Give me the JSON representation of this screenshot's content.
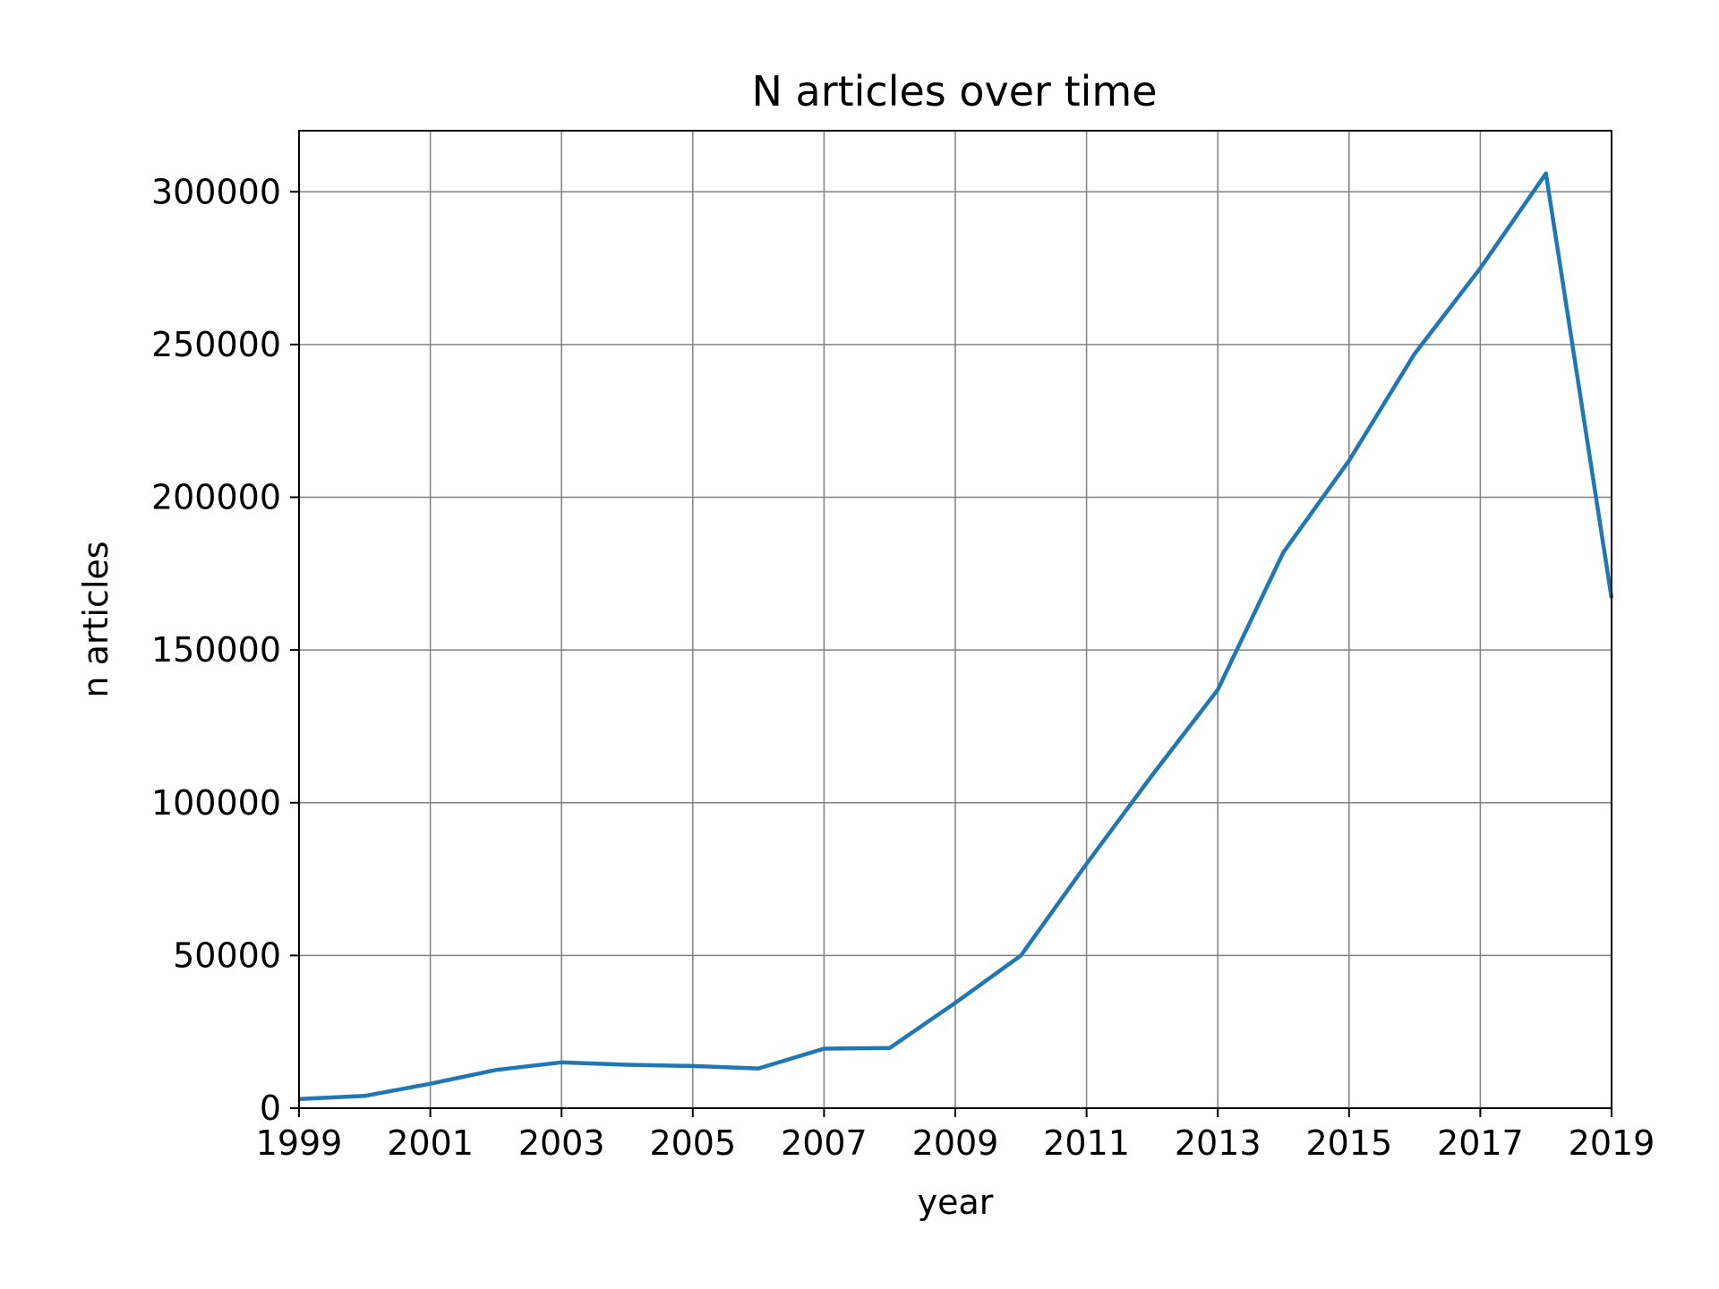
{
  "chart_data": {
    "type": "line",
    "title": "N articles over time",
    "xlabel": "year",
    "ylabel": "n articles",
    "xlim": [
      1999,
      2019
    ],
    "ylim": [
      0,
      320000
    ],
    "grid": true,
    "x_ticks": [
      "1999",
      "2001",
      "2003",
      "2005",
      "2007",
      "2009",
      "2011",
      "2013",
      "2015",
      "2017",
      "2019"
    ],
    "y_ticks": [
      "0",
      "50000",
      "100000",
      "150000",
      "200000",
      "250000",
      "300000"
    ],
    "line_color": "#1f77b4",
    "grid_color": "#808080",
    "series": [
      {
        "x": [
          1999,
          2000,
          2001,
          2002,
          2003,
          2004,
          2005,
          2006,
          2007,
          2008,
          2009,
          2010,
          2011,
          2012,
          2013,
          2014,
          2015,
          2016,
          2017,
          2018,
          2019
        ],
        "y": [
          3000,
          4000,
          8000,
          12500,
          15000,
          14200,
          13800,
          13000,
          19500,
          19700,
          34500,
          50000,
          80000,
          109000,
          137000,
          182000,
          212000,
          247000,
          275000,
          306000,
          167000
        ]
      }
    ]
  }
}
